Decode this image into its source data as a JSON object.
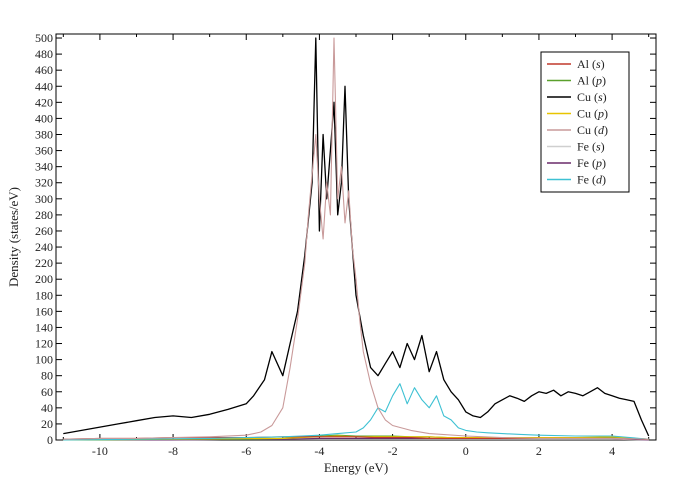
{
  "chart_data": {
    "type": "line",
    "xlabel": "Energy (eV)",
    "ylabel": "Density (states/eV)",
    "xlim": [
      -11.2,
      5.2
    ],
    "ylim": [
      0,
      505
    ],
    "xticks": [
      -10,
      -8,
      -6,
      -4,
      -2,
      0,
      2,
      4
    ],
    "yticks": [
      0,
      20,
      40,
      60,
      80,
      100,
      120,
      140,
      160,
      180,
      200,
      220,
      240,
      260,
      280,
      300,
      320,
      340,
      360,
      380,
      400,
      420,
      440,
      460,
      480,
      500
    ],
    "grid": false,
    "legend_position": "top-right",
    "series": [
      {
        "name": "Al (s)",
        "legend_base": "Al",
        "legend_orb": "s",
        "color": "#c0392b",
        "x": [
          -11,
          -10,
          -9,
          -8,
          -7,
          -6,
          -5,
          -4.5,
          -4,
          -3.5,
          -3,
          -2.5,
          -2,
          -1.5,
          -1,
          -0.5,
          0,
          1,
          2,
          3,
          4,
          5
        ],
        "y": [
          1,
          2,
          2,
          3,
          3,
          3,
          4,
          4,
          4,
          4,
          4,
          3,
          3,
          3,
          2,
          2,
          2,
          2,
          2,
          2,
          2,
          1
        ]
      },
      {
        "name": "Al (p)",
        "legend_base": "Al",
        "legend_orb": "p",
        "color": "#5aa02c",
        "x": [
          -11,
          -10,
          -8,
          -6,
          -5,
          -4.5,
          -4,
          -3.5,
          -3,
          -2.5,
          -2,
          -1.5,
          -1,
          -0.5,
          0,
          1,
          2,
          3,
          4,
          5
        ],
        "y": [
          0,
          0,
          1,
          1,
          2,
          4,
          5,
          6,
          5,
          5,
          5,
          4,
          4,
          3,
          3,
          3,
          3,
          3,
          3,
          1
        ]
      },
      {
        "name": "Cu (s)",
        "legend_base": "Cu",
        "legend_orb": "s",
        "color": "#000000",
        "x": [
          -11,
          -10.5,
          -10,
          -9.5,
          -9,
          -8.5,
          -8,
          -7.5,
          -7,
          -6.5,
          -6,
          -5.8,
          -5.5,
          -5.3,
          -5,
          -4.8,
          -4.6,
          -4.4,
          -4.2,
          -4.1,
          -4.0,
          -3.9,
          -3.8,
          -3.7,
          -3.6,
          -3.5,
          -3.4,
          -3.3,
          -3.2,
          -3.1,
          -3.0,
          -2.8,
          -2.6,
          -2.4,
          -2.2,
          -2.0,
          -1.8,
          -1.6,
          -1.4,
          -1.2,
          -1.0,
          -0.8,
          -0.6,
          -0.4,
          -0.2,
          0,
          0.2,
          0.4,
          0.6,
          0.8,
          1.0,
          1.2,
          1.4,
          1.6,
          1.8,
          2.0,
          2.2,
          2.4,
          2.6,
          2.8,
          3.0,
          3.2,
          3.4,
          3.6,
          3.8,
          4.0,
          4.2,
          4.4,
          4.6,
          4.8,
          5.0
        ],
        "y": [
          8,
          12,
          16,
          20,
          24,
          28,
          30,
          28,
          32,
          38,
          45,
          55,
          75,
          110,
          80,
          120,
          160,
          230,
          320,
          500,
          260,
          380,
          300,
          360,
          420,
          280,
          320,
          440,
          300,
          240,
          180,
          130,
          90,
          80,
          95,
          110,
          90,
          120,
          100,
          130,
          85,
          110,
          75,
          60,
          50,
          35,
          30,
          28,
          35,
          45,
          50,
          55,
          52,
          48,
          55,
          60,
          58,
          62,
          55,
          60,
          58,
          55,
          60,
          65,
          58,
          55,
          52,
          50,
          48,
          25,
          5
        ]
      },
      {
        "name": "Cu (p)",
        "legend_base": "Cu",
        "legend_orb": "p",
        "color": "#e8c400",
        "x": [
          -11,
          -10,
          -8,
          -6,
          -5,
          -4.5,
          -4,
          -3.5,
          -3,
          -2.5,
          -2,
          -1.5,
          -1,
          -0.5,
          0,
          1,
          2,
          3,
          4,
          5
        ],
        "y": [
          0,
          1,
          1,
          2,
          2,
          3,
          4,
          5,
          4,
          4,
          4,
          4,
          4,
          3,
          3,
          3,
          3,
          3,
          4,
          1
        ]
      },
      {
        "name": "Cu (d)",
        "legend_base": "Cu",
        "legend_orb": "d",
        "color": "#c99a9a",
        "x": [
          -11,
          -10,
          -9,
          -8,
          -7,
          -6,
          -5.6,
          -5.3,
          -5.0,
          -4.8,
          -4.6,
          -4.4,
          -4.3,
          -4.2,
          -4.1,
          -4.0,
          -3.9,
          -3.8,
          -3.7,
          -3.6,
          -3.5,
          -3.4,
          -3.3,
          -3.2,
          -3.1,
          -3.0,
          -2.9,
          -2.8,
          -2.6,
          -2.4,
          -2.2,
          -2.0,
          -1.5,
          -1.0,
          0,
          1,
          2,
          3,
          4,
          5
        ],
        "y": [
          1,
          2,
          2,
          3,
          4,
          6,
          10,
          18,
          40,
          90,
          150,
          220,
          280,
          330,
          380,
          300,
          250,
          320,
          280,
          500,
          300,
          340,
          270,
          310,
          240,
          200,
          150,
          110,
          70,
          40,
          25,
          18,
          12,
          8,
          5,
          3,
          2,
          2,
          2,
          1
        ]
      },
      {
        "name": "Fe (s)",
        "legend_base": "Fe",
        "legend_orb": "s",
        "color": "#cfcfcf",
        "x": [
          -11,
          -10,
          -8,
          -6,
          -5,
          -4,
          -3,
          -2,
          -1,
          0,
          1,
          2,
          3,
          4,
          5
        ],
        "y": [
          0,
          0,
          0,
          1,
          1,
          1,
          1,
          1,
          1,
          1,
          1,
          1,
          1,
          1,
          0
        ]
      },
      {
        "name": "Fe (p)",
        "legend_base": "Fe",
        "legend_orb": "p",
        "color": "#6a2a6a",
        "x": [
          -11,
          -10,
          -8,
          -6,
          -5,
          -4,
          -3,
          -2,
          -1,
          0,
          1,
          2,
          3,
          4,
          5
        ],
        "y": [
          0,
          0,
          0,
          1,
          1,
          2,
          2,
          2,
          2,
          2,
          2,
          2,
          2,
          2,
          0
        ]
      },
      {
        "name": "Fe (d)",
        "legend_base": "Fe",
        "legend_orb": "d",
        "color": "#3ec1d3",
        "x": [
          -11,
          -9,
          -7,
          -6,
          -5,
          -4.5,
          -4,
          -3.5,
          -3,
          -2.8,
          -2.6,
          -2.4,
          -2.2,
          -2.0,
          -1.8,
          -1.6,
          -1.4,
          -1.2,
          -1.0,
          -0.8,
          -0.6,
          -0.4,
          -0.2,
          0,
          0.3,
          0.6,
          1.0,
          1.5,
          2,
          3,
          4,
          5
        ],
        "y": [
          0,
          1,
          2,
          3,
          4,
          5,
          6,
          8,
          10,
          15,
          25,
          40,
          35,
          55,
          70,
          45,
          65,
          50,
          40,
          55,
          30,
          25,
          15,
          12,
          10,
          9,
          8,
          7,
          6,
          5,
          5,
          1
        ]
      }
    ]
  }
}
